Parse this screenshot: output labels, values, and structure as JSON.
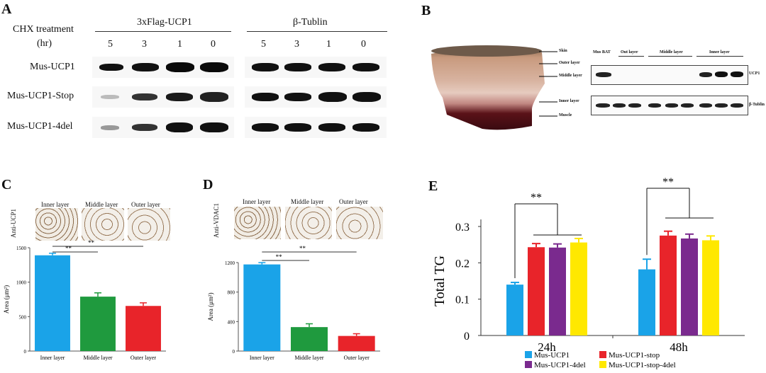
{
  "panel_labels": {
    "a": "A",
    "b": "B",
    "c": "C",
    "d": "D",
    "e": "E"
  },
  "panel_a": {
    "chx_label": "CHX treatment",
    "hr_label": "(hr)",
    "group1": "3xFlag-UCP1",
    "group2": "β-Tublin",
    "times": [
      "5",
      "3",
      "1",
      "0",
      "5",
      "3",
      "1",
      "0"
    ],
    "rows": [
      "Mus-UCP1",
      "Mus-UCP1-Stop",
      "Mus-UCP1-4del"
    ]
  },
  "panel_b": {
    "tissue_labels": [
      "Skin",
      "Outer layer",
      "Middle layer",
      "Inner layer",
      "Muscle"
    ],
    "lane_groups": [
      "Mus BAT",
      "Out layer",
      "Middle layer",
      "Inner layer"
    ],
    "blot_labels": [
      "UCP1",
      "β-Tublin"
    ]
  },
  "panel_c": {
    "micro_labels": [
      "Inner layer",
      "Middle layer",
      "Outer layer"
    ],
    "stain_label": "Anti-UCP1",
    "sig": [
      "**",
      "**"
    ],
    "chart_data": {
      "type": "bar",
      "categories": [
        "Inner layer",
        "Middle layer",
        "Outer layer"
      ],
      "values": [
        1390,
        790,
        655
      ],
      "errors": [
        30,
        55,
        45
      ],
      "colors": [
        "#1aa3e8",
        "#1f9a3e",
        "#e8242a"
      ],
      "ylabel": "Area (μm²)",
      "ylim": [
        0,
        1500
      ],
      "yticks": [
        "0",
        "500",
        "1000",
        "1500"
      ]
    }
  },
  "panel_d": {
    "micro_labels": [
      "Inner layer",
      "Middle layer",
      "Outer layer"
    ],
    "stain_label": "Anti-VDAC1",
    "sig": [
      "**",
      "**"
    ],
    "chart_data": {
      "type": "bar",
      "categories": [
        "Inner layer",
        "Middle layer",
        "Outer layer"
      ],
      "values": [
        1175,
        325,
        205
      ],
      "errors": [
        25,
        45,
        30
      ],
      "colors": [
        "#1aa3e8",
        "#1f9a3e",
        "#e8242a"
      ],
      "ylabel": "Area (μm²)",
      "ylim": [
        0,
        1200
      ],
      "yticks": [
        "0",
        "400",
        "800",
        "1200"
      ]
    }
  },
  "panel_e": {
    "sig": [
      "**",
      "**"
    ],
    "chart_data": {
      "type": "bar",
      "categories": [
        "24h",
        "48h"
      ],
      "series": [
        {
          "name": "Mus-UCP1",
          "values": [
            0.14,
            0.182
          ],
          "errors": [
            0.006,
            0.028
          ],
          "color": "#1aa3e8"
        },
        {
          "name": "Mus-UCP1-stop",
          "values": [
            0.243,
            0.275
          ],
          "errors": [
            0.01,
            0.012
          ],
          "color": "#e8242a"
        },
        {
          "name": "Mus-UCP1-4del",
          "values": [
            0.242,
            0.267
          ],
          "errors": [
            0.01,
            0.012
          ],
          "color": "#7a2a8e"
        },
        {
          "name": "Mus-UCP1-stop-4del",
          "values": [
            0.256,
            0.262
          ],
          "errors": [
            0.011,
            0.012
          ],
          "color": "#ffe800"
        }
      ],
      "ylabel": "Total TG",
      "ylim": [
        0,
        0.3
      ],
      "yticks": [
        "0",
        "0.1",
        "0.2",
        "0.3"
      ]
    }
  }
}
